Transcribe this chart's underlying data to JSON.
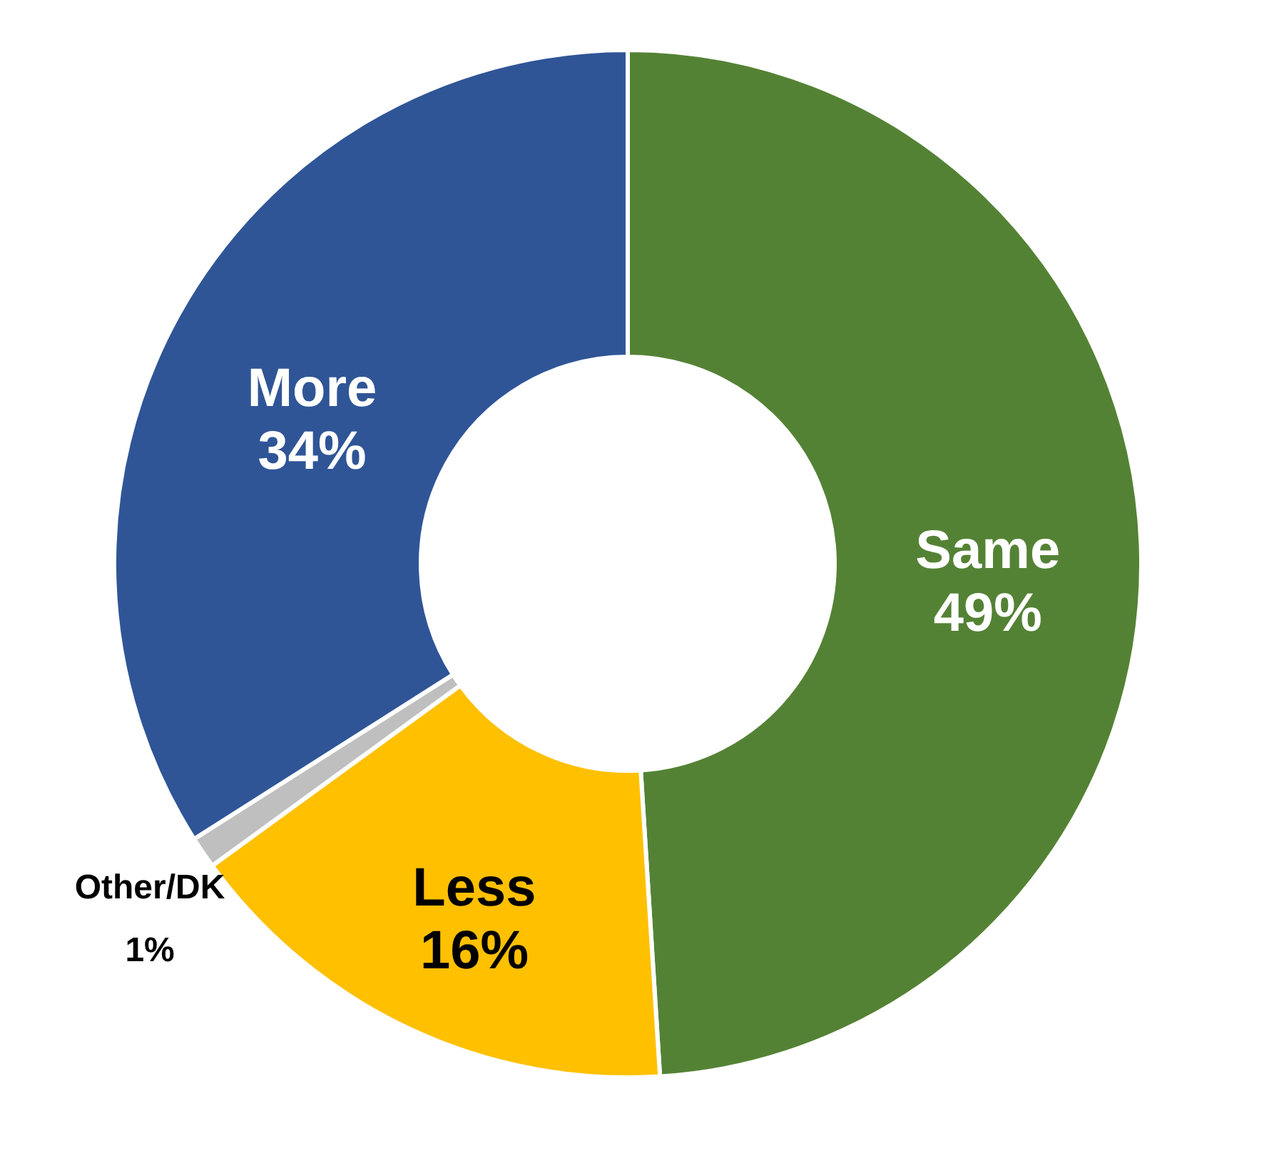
{
  "chart_data": {
    "type": "donut",
    "categories": [
      "Same",
      "Less",
      "Other/DK",
      "More"
    ],
    "values": [
      49,
      16,
      1,
      34
    ],
    "colors": [
      "#548235",
      "#ffc000",
      "#bfbfbf",
      "#2f5597"
    ],
    "value_labels": [
      "49%",
      "16%",
      "1%",
      "34%"
    ],
    "legend": false
  }
}
